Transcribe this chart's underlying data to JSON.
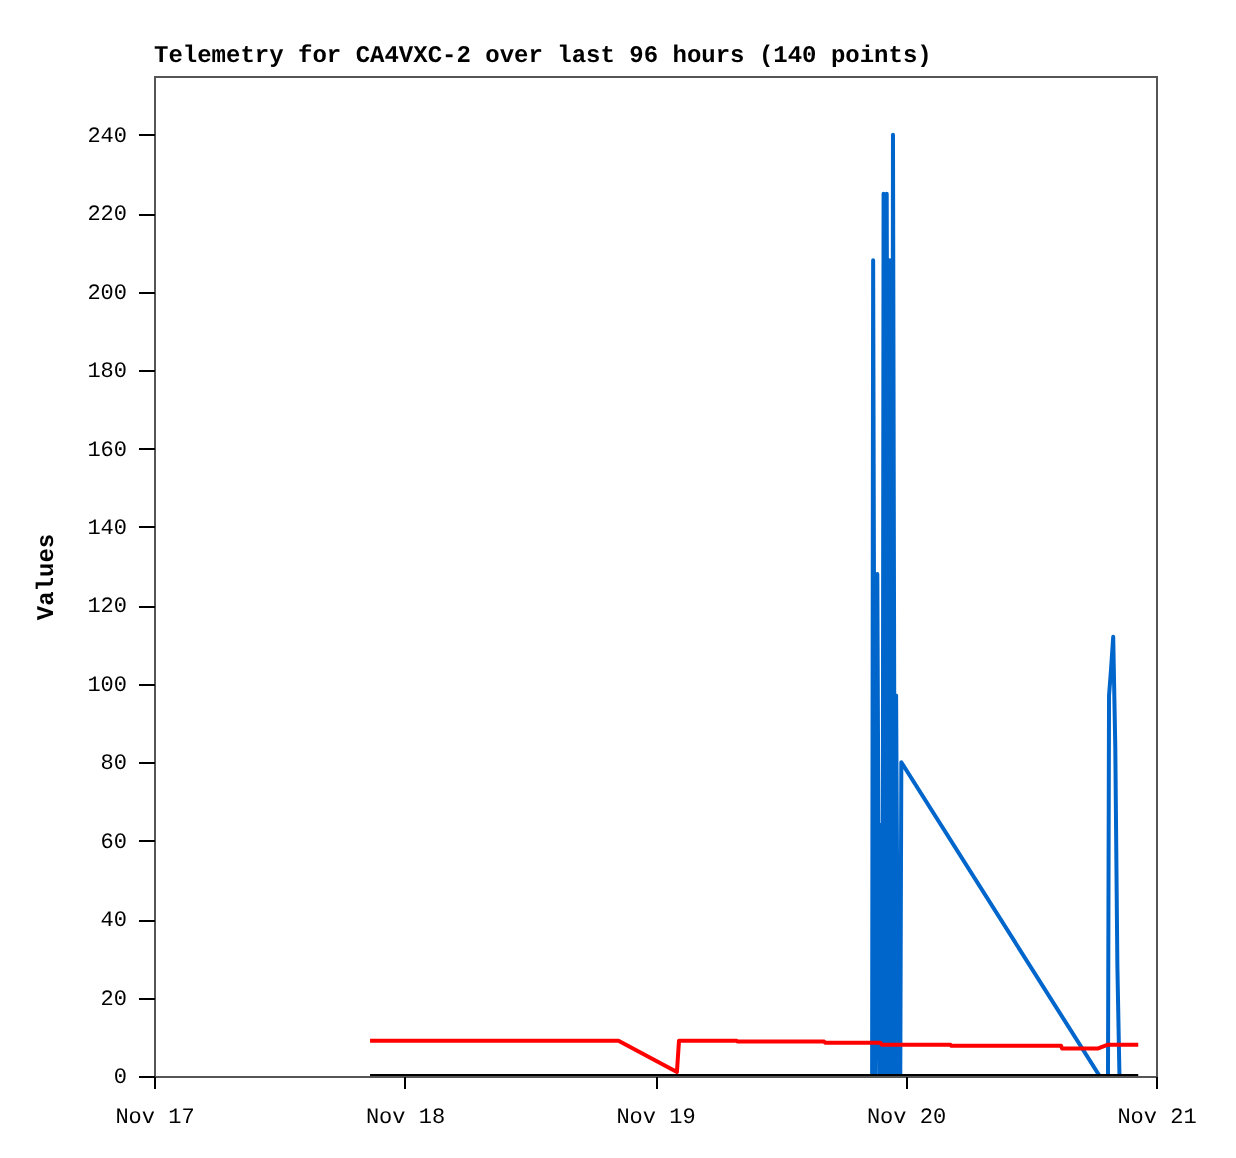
{
  "chart_data": {
    "type": "line",
    "title": "Telemetry for CA4VXC-2 over last 96 hours (140 points)",
    "ylabel": "Values",
    "xlim": [
      "--11-17",
      "--11-21"
    ],
    "xticks": [
      {
        "value": "--11-17",
        "label": "Nov 17"
      },
      {
        "value": "--11-18",
        "label": "Nov 18"
      },
      {
        "value": "--11-19",
        "label": "Nov 19"
      },
      {
        "value": "--11-20",
        "label": "Nov 20"
      },
      {
        "value": "--11-21",
        "label": "Nov 21"
      }
    ],
    "ylim": [
      0,
      255
    ],
    "yticks": [
      0,
      20,
      40,
      60,
      80,
      100,
      120,
      140,
      160,
      180,
      200,
      220,
      240
    ],
    "grid": false,
    "marker": "none",
    "line_style": "solid",
    "series": [
      {
        "color": "#0066cc",
        "x": [
          "--11-19T20:48",
          "--11-19T20:54",
          "--11-19T21:06",
          "--11-19T21:18",
          "--11-19T21:30",
          "--11-19T21:36",
          "--11-19T21:48",
          "--11-19T21:54",
          "--11-19T22:06",
          "--11-19T22:12",
          "--11-19T22:24",
          "--11-19T22:30",
          "--11-19T22:42",
          "--11-19T22:48",
          "--11-19T23:00",
          "--11-19T23:06",
          "--11-19T23:18",
          "--11-19T23:30",
          "--11-19T23:36",
          "--11-20T18:36",
          "--11-20T19:24",
          "--11-20T19:30",
          "--11-20T19:42",
          "--11-20T19:54",
          "--11-20T20:06",
          "--11-20T20:18",
          "--11-20T20:30"
        ],
        "values": [
          0,
          208,
          0,
          128,
          0,
          64,
          0,
          225,
          0,
          225,
          0,
          208,
          0,
          240,
          0,
          97,
          0,
          0,
          80,
          0,
          0,
          97,
          104,
          112,
          84,
          28,
          0
        ]
      },
      {
        "color": "#000000",
        "x": [
          "--11-17T20:42",
          "--11-20T22:18"
        ],
        "values": [
          0,
          0
        ]
      },
      {
        "color": "#ff0000",
        "x": [
          "--11-17T20:42",
          "--11-18T20:30",
          "--11-19T02:06",
          "--11-19T02:18",
          "--11-19T07:48",
          "--11-19T07:54",
          "--11-19T16:12",
          "--11-19T16:18",
          "--11-19T21:36",
          "--11-19T21:42",
          "--11-20T04:18",
          "--11-20T04:24",
          "--11-20T14:54",
          "--11-20T15:00",
          "--11-20T18:24",
          "--11-20T19:24",
          "--11-20T22:18"
        ],
        "values": [
          9,
          9,
          1,
          9,
          9,
          8.8,
          8.8,
          8.5,
          8.5,
          8,
          8,
          7.7,
          7.7,
          7,
          7,
          8,
          8
        ]
      }
    ]
  }
}
